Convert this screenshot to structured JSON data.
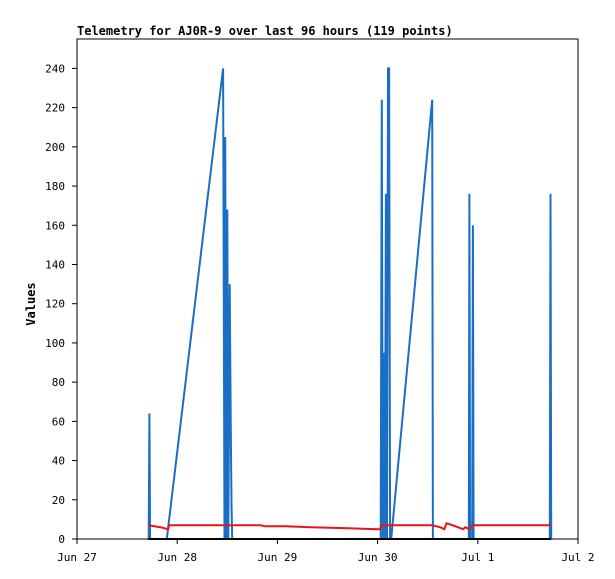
{
  "chart_data": {
    "type": "line",
    "title": "Telemetry for AJ0R-9 over last 96 hours (119 points)",
    "xlabel": "",
    "ylabel": "Values",
    "grid": false,
    "legend": "none",
    "x_axis": {
      "type": "date",
      "range": [
        "2024-06-27",
        "2024-07-02"
      ],
      "tick_labels": [
        "Jun 27",
        "Jun 28",
        "Jun 29",
        "Jun 30",
        "Jul 1",
        "Jul 2"
      ]
    },
    "y_axis": {
      "range": [
        0,
        255
      ],
      "tick_values": [
        0,
        20,
        40,
        60,
        80,
        100,
        120,
        140,
        160,
        180,
        200,
        220,
        240
      ]
    },
    "series": [
      {
        "color": "#1a6fc4",
        "points": [
          [
            "2024-06-27 17:10",
            0
          ],
          [
            "2024-06-27 17:20",
            64
          ],
          [
            "2024-06-27 17:30",
            0
          ],
          [
            "2024-06-27 21:30",
            0
          ],
          [
            "2024-06-28 11:00",
            240
          ],
          [
            "2024-06-28 11:20",
            0
          ],
          [
            "2024-06-28 11:30",
            205
          ],
          [
            "2024-06-28 11:45",
            0
          ],
          [
            "2024-06-28 12:00",
            168
          ],
          [
            "2024-06-28 12:15",
            0
          ],
          [
            "2024-06-28 12:35",
            130
          ],
          [
            "2024-06-28 12:50",
            55
          ],
          [
            "2024-06-28 13:00",
            18
          ],
          [
            "2024-06-28 13:10",
            0
          ],
          [
            "2024-06-30 00:45",
            0
          ],
          [
            "2024-06-30 01:00",
            224
          ],
          [
            "2024-06-30 01:15",
            0
          ],
          [
            "2024-06-30 01:30",
            95
          ],
          [
            "2024-06-30 01:45",
            0
          ],
          [
            "2024-06-30 02:00",
            176
          ],
          [
            "2024-06-30 02:15",
            0
          ],
          [
            "2024-06-30 02:30",
            240
          ],
          [
            "2024-06-30 02:45",
            240
          ],
          [
            "2024-06-30 03:00",
            0
          ],
          [
            "2024-06-30 03:15",
            0
          ],
          [
            "2024-06-30 13:05",
            224
          ],
          [
            "2024-06-30 13:15",
            0
          ],
          [
            "2024-06-30 21:50",
            0
          ],
          [
            "2024-06-30 22:00",
            176
          ],
          [
            "2024-06-30 22:10",
            0
          ],
          [
            "2024-06-30 22:40",
            0
          ],
          [
            "2024-06-30 22:50",
            160
          ],
          [
            "2024-06-30 23:00",
            0
          ],
          [
            "2024-07-01 17:15",
            0
          ],
          [
            "2024-07-01 17:25",
            176
          ],
          [
            "2024-07-01 17:35",
            0
          ]
        ]
      },
      {
        "color": "#e8141a",
        "points": [
          [
            "2024-06-27 17:00",
            7
          ],
          [
            "2024-06-27 20:00",
            6
          ],
          [
            "2024-06-27 21:50",
            5
          ],
          [
            "2024-06-27 22:00",
            7
          ],
          [
            "2024-06-28 20:00",
            7
          ],
          [
            "2024-06-28 21:00",
            6.5
          ],
          [
            "2024-06-29 02:00",
            6.5
          ],
          [
            "2024-06-29 08:00",
            6
          ],
          [
            "2024-06-29 17:00",
            5.5
          ],
          [
            "2024-06-30 00:00",
            5
          ],
          [
            "2024-06-30 00:30",
            5
          ],
          [
            "2024-06-30 01:00",
            7
          ],
          [
            "2024-06-30 13:00",
            7
          ],
          [
            "2024-06-30 15:00",
            6
          ],
          [
            "2024-06-30 16:00",
            5
          ],
          [
            "2024-06-30 16:30",
            8
          ],
          [
            "2024-06-30 18:00",
            7
          ],
          [
            "2024-06-30 20:30",
            5
          ],
          [
            "2024-06-30 21:00",
            6
          ],
          [
            "2024-06-30 22:00",
            5
          ],
          [
            "2024-06-30 22:45",
            7
          ],
          [
            "2024-07-01 17:30",
            7
          ]
        ]
      },
      {
        "color": "#000000",
        "points": [
          [
            "2024-06-27 17:00",
            0
          ],
          [
            "2024-07-01 17:30",
            0
          ]
        ]
      }
    ]
  }
}
